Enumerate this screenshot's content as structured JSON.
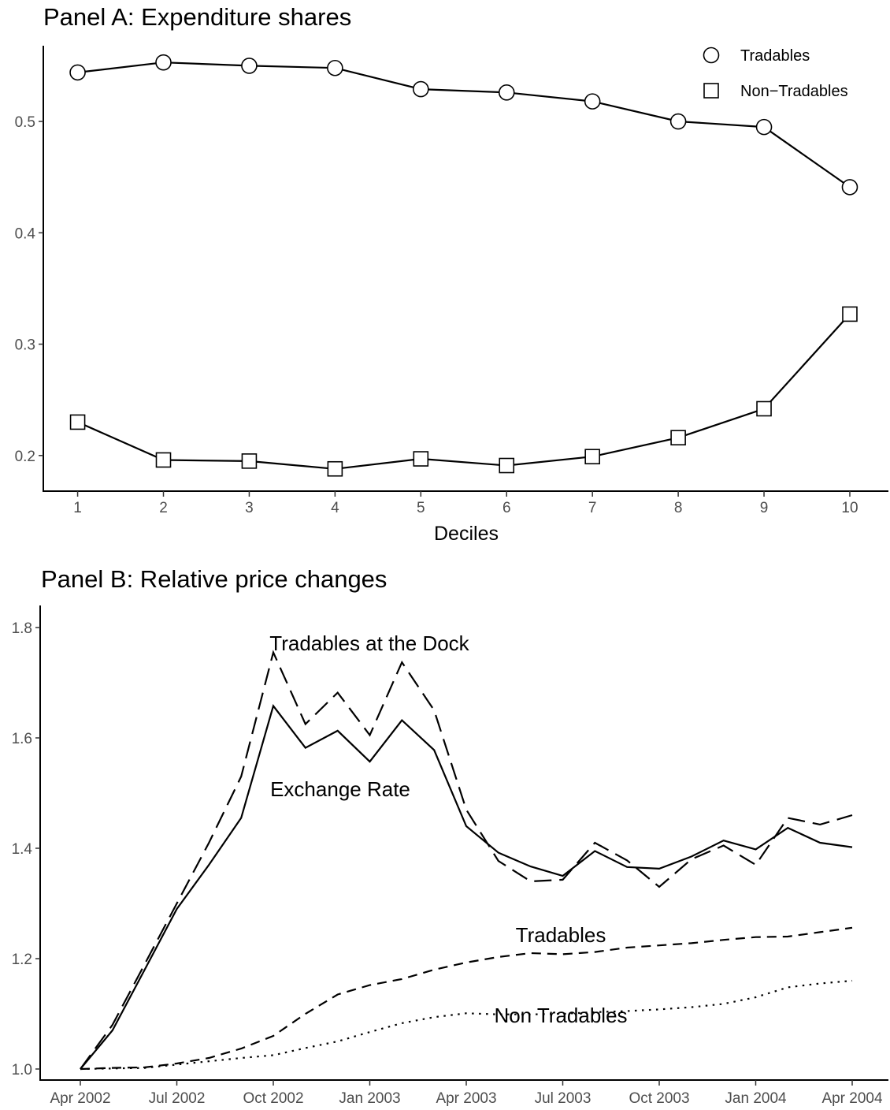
{
  "chart_data": [
    {
      "type": "line",
      "title": "Panel A: Expenditure shares",
      "xlabel": "Deciles",
      "ylabel": "",
      "x": [
        1,
        2,
        3,
        4,
        5,
        6,
        7,
        8,
        9,
        10
      ],
      "xlim": [
        0.6,
        10.45
      ],
      "ylim": [
        0.168,
        0.568
      ],
      "yticks": [
        0.2,
        0.3,
        0.4,
        0.5
      ],
      "ytick_labels": [
        "0.2",
        "0.3",
        "0.4",
        "0.5"
      ],
      "xtick_labels": [
        "1",
        "2",
        "3",
        "4",
        "5",
        "6",
        "7",
        "8",
        "9",
        "10"
      ],
      "grid": false,
      "legend": "top-right",
      "series": [
        {
          "name": "Tradables",
          "marker": "circle",
          "values": [
            0.544,
            0.553,
            0.55,
            0.548,
            0.529,
            0.526,
            0.518,
            0.5,
            0.495,
            0.441
          ]
        },
        {
          "name": "Non−Tradables",
          "marker": "square",
          "values": [
            0.23,
            0.196,
            0.195,
            0.188,
            0.197,
            0.191,
            0.199,
            0.216,
            0.242,
            0.327
          ]
        }
      ]
    },
    {
      "type": "line",
      "title": "Panel B: Relative price changes",
      "xlabel": "",
      "ylabel": "",
      "x": [
        "2002-04",
        "2002-05",
        "2002-06",
        "2002-07",
        "2002-08",
        "2002-09",
        "2002-10",
        "2002-11",
        "2002-12",
        "2003-01",
        "2003-02",
        "2003-03",
        "2003-04",
        "2003-05",
        "2003-06",
        "2003-07",
        "2003-08",
        "2003-09",
        "2003-10",
        "2003-11",
        "2003-12",
        "2004-01",
        "2004-02",
        "2004-03",
        "2004-04"
      ],
      "xtick_labels": [
        "Apr 2002",
        "Jul 2002",
        "Oct 2002",
        "Jan 2003",
        "Apr 2003",
        "Jul 2003",
        "Oct 2003",
        "Jan 2004",
        "Apr 2004"
      ],
      "ylim": [
        0.98,
        1.84
      ],
      "yticks": [
        1.0,
        1.2,
        1.4,
        1.6,
        1.8
      ],
      "ytick_labels": [
        "1.0",
        "1.2",
        "1.4",
        "1.6",
        "1.8"
      ],
      "grid": false,
      "legend": "none",
      "series": [
        {
          "name": "Tradables at the Dock",
          "style": "longdash",
          "values": [
            1.0,
            1.08,
            1.19,
            1.3,
            1.41,
            1.53,
            1.755,
            1.625,
            1.682,
            1.605,
            1.737,
            1.65,
            1.47,
            1.377,
            1.34,
            1.343,
            1.41,
            1.378,
            1.33,
            1.38,
            1.405,
            1.37,
            1.455,
            1.443,
            1.46
          ]
        },
        {
          "name": "Exchange Rate",
          "style": "solid",
          "values": [
            1.0,
            1.07,
            1.18,
            1.29,
            1.37,
            1.455,
            1.658,
            1.582,
            1.613,
            1.557,
            1.632,
            1.578,
            1.44,
            1.392,
            1.367,
            1.35,
            1.395,
            1.366,
            1.363,
            1.385,
            1.414,
            1.398,
            1.437,
            1.41,
            1.402
          ]
        },
        {
          "name": "Tradables",
          "style": "dashed",
          "values": [
            1.0,
            1.002,
            1.003,
            1.01,
            1.02,
            1.037,
            1.06,
            1.1,
            1.135,
            1.152,
            1.163,
            1.18,
            1.193,
            1.203,
            1.21,
            1.208,
            1.212,
            1.22,
            1.224,
            1.228,
            1.234,
            1.239,
            1.24,
            1.248,
            1.256
          ]
        },
        {
          "name": "Non Tradables",
          "style": "dotted",
          "values": [
            1.0,
            1.001,
            1.002,
            1.008,
            1.014,
            1.02,
            1.025,
            1.038,
            1.05,
            1.067,
            1.083,
            1.094,
            1.101,
            1.099,
            1.099,
            1.1,
            1.103,
            1.105,
            1.108,
            1.112,
            1.118,
            1.13,
            1.148,
            1.155,
            1.16
          ]
        }
      ],
      "annotations": [
        {
          "text": "Tradables at the Dock",
          "series": "Tradables at the Dock"
        },
        {
          "text": "Exchange Rate",
          "series": "Exchange Rate"
        },
        {
          "text": "Tradables",
          "series": "Tradables"
        },
        {
          "text": "Non Tradables",
          "series": "Non Tradables"
        }
      ]
    }
  ]
}
